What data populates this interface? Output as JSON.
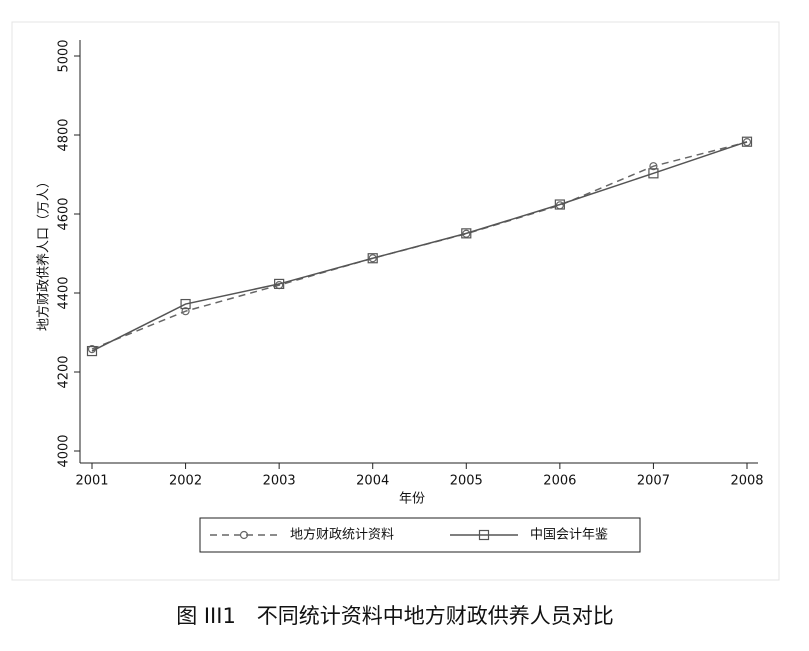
{
  "chart_data": {
    "type": "line",
    "caption": "图 III1　不同统计资料中地方财政供养人员对比",
    "xlabel": "年份",
    "ylabel": "地方财政供养人口（万人）",
    "x": [
      2001,
      2002,
      2003,
      2004,
      2005,
      2006,
      2007,
      2008
    ],
    "xlim": [
      2001,
      2008
    ],
    "xticks": [
      2001,
      2002,
      2003,
      2004,
      2005,
      2006,
      2007,
      2008
    ],
    "ylim": [
      4000,
      5000
    ],
    "yticks": [
      4000,
      4200,
      4400,
      4600,
      4800,
      5000
    ],
    "grid": false,
    "legend": "bottom",
    "series": [
      {
        "name": "地方财政统计资料",
        "color": "#666666",
        "dash": true,
        "marker": "circle",
        "values": [
          4258,
          4354,
          4420,
          4488,
          4550,
          4622,
          4721,
          4782
        ]
      },
      {
        "name": "中国会计年鉴",
        "color": "#555555",
        "dash": false,
        "marker": "square",
        "values": [
          4253,
          4372,
          4423,
          4488,
          4551,
          4624,
          4703,
          4783
        ]
      }
    ]
  }
}
